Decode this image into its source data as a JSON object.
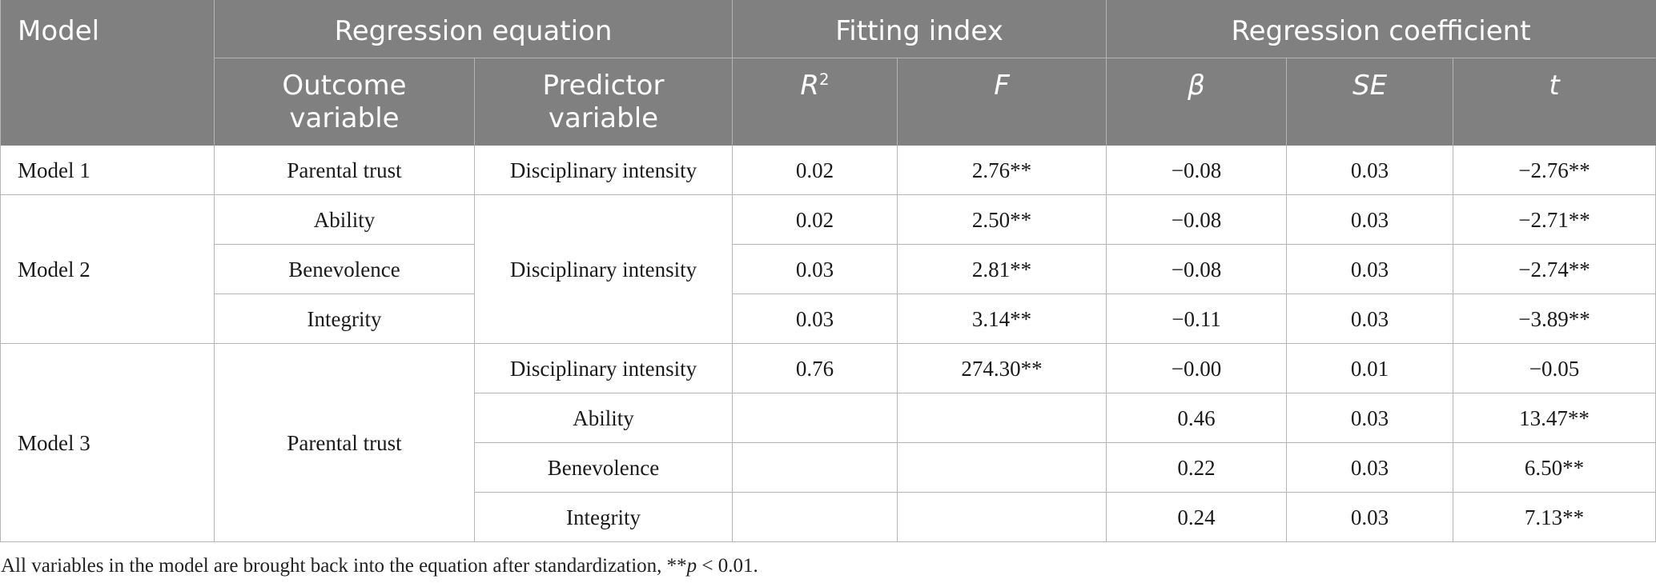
{
  "table": {
    "header": {
      "model": "Model",
      "regression_equation": "Regression equation",
      "fitting_index": "Fitting index",
      "regression_coefficient": "Regression coefficient",
      "outcome_variable": "Outcome variable",
      "predictor_variable": "Predictor variable",
      "r2": {
        "base": "R",
        "sup": "2"
      },
      "f": "F",
      "beta": "β",
      "se": "SE",
      "t": "t"
    },
    "models": [
      {
        "name": "Model 1",
        "rows": [
          {
            "outcome": "Parental trust",
            "predictor": "Disciplinary intensity",
            "r2": "0.02",
            "f": "2.76**",
            "beta": "−0.08",
            "se": "0.03",
            "t": "−2.76**"
          }
        ]
      },
      {
        "name": "Model 2",
        "predictor": "Disciplinary intensity",
        "rows": [
          {
            "outcome": "Ability",
            "r2": "0.02",
            "f": "2.50**",
            "beta": "−0.08",
            "se": "0.03",
            "t": "−2.71**"
          },
          {
            "outcome": "Benevolence",
            "r2": "0.03",
            "f": "2.81**",
            "beta": "−0.08",
            "se": "0.03",
            "t": "−2.74**"
          },
          {
            "outcome": "Integrity",
            "r2": "0.03",
            "f": "3.14**",
            "beta": "−0.11",
            "se": "0.03",
            "t": "−3.89**"
          }
        ]
      },
      {
        "name": "Model 3",
        "outcome": "Parental trust",
        "r2": "0.76",
        "f": "274.30**",
        "rows": [
          {
            "predictor": "Disciplinary intensity",
            "beta": "−0.00",
            "se": "0.01",
            "t": "−0.05"
          },
          {
            "predictor": "Ability",
            "beta": "0.46",
            "se": "0.03",
            "t": "13.47**"
          },
          {
            "predictor": "Benevolence",
            "beta": "0.22",
            "se": "0.03",
            "t": "6.50**"
          },
          {
            "predictor": "Integrity",
            "beta": "0.24",
            "se": "0.03",
            "t": "7.13**"
          }
        ]
      }
    ]
  },
  "footnote": {
    "text_before": "All variables in the model are brought back into the equation after standardization, **",
    "italic": "p",
    "text_after": " < 0.01."
  },
  "colors": {
    "header_background": "#808080",
    "header_text": "#ffffff",
    "header_line": "#b3b3b3",
    "border": "#b5b5b5",
    "body_text": "#1a1a1a"
  }
}
